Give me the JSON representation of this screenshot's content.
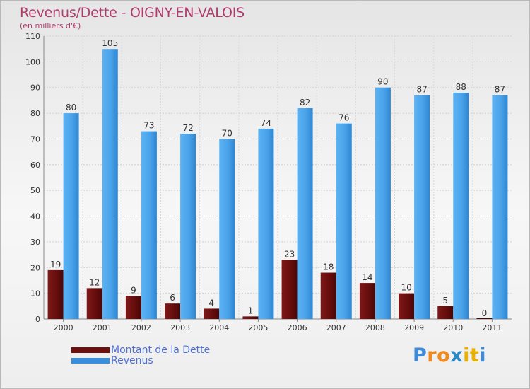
{
  "title": "Revenus/Dette - OIGNY-EN-VALOIS",
  "subtitle": "(en milliers d'€)",
  "logo": {
    "text": "Proxiti",
    "letters": [
      "P",
      "r",
      "o",
      "x",
      "i",
      "t",
      "i"
    ],
    "colors": [
      "#3d8ad8",
      "#f08a1c",
      "#f08a1c",
      "#2a8ac8",
      "#e8b000",
      "#e8b000",
      "#3d8ad8"
    ]
  },
  "legend": [
    {
      "label": "Montant de la Dette",
      "color": "#6b0f0f"
    },
    {
      "label": "Revenus",
      "color": "#3a8fdc"
    }
  ],
  "chart_data": {
    "type": "bar",
    "categories": [
      "2000",
      "2001",
      "2002",
      "2003",
      "2004",
      "2005",
      "2006",
      "2007",
      "2008",
      "2009",
      "2010",
      "2011"
    ],
    "series": [
      {
        "name": "Montant de la Dette",
        "values": [
          19,
          12,
          9,
          6,
          4,
          1,
          23,
          18,
          14,
          10,
          5,
          0
        ],
        "color": "#7a1414"
      },
      {
        "name": "Revenus",
        "values": [
          80,
          105,
          73,
          72,
          70,
          74,
          82,
          76,
          90,
          87,
          88,
          87
        ],
        "color": "#4aa3ea"
      }
    ],
    "ylim": [
      0,
      110
    ],
    "yticks": [
      0,
      10,
      20,
      30,
      40,
      50,
      60,
      70,
      80,
      90,
      100,
      110
    ],
    "grid": true,
    "legend_position": "bottom-left"
  }
}
